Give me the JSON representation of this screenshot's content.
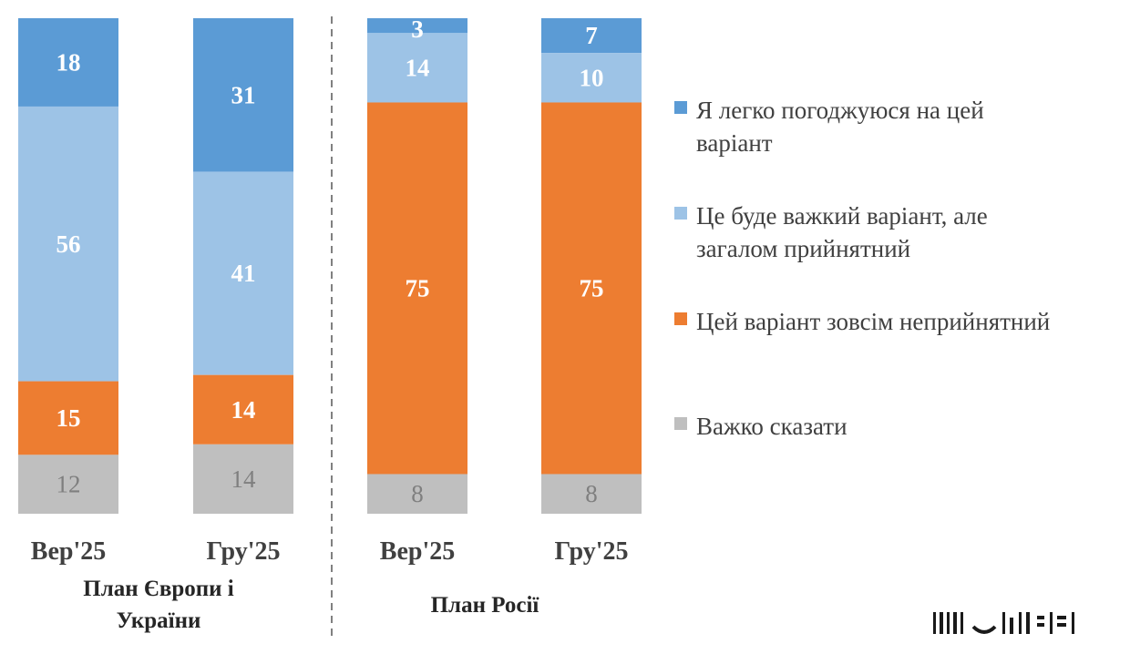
{
  "chart_data": {
    "type": "bar",
    "stacked": true,
    "normalized_percent": true,
    "groups": [
      {
        "label": "План Європи і України",
        "categories": [
          "Вер'25",
          "Гру'25"
        ]
      },
      {
        "label": "План Росії",
        "categories": [
          "Вер'25",
          "Гру'25"
        ]
      }
    ],
    "categories": [
      "Вер'25",
      "Гру'25",
      "Вер'25",
      "Гру'25"
    ],
    "series": [
      {
        "name": "Я легко погоджуюся на цей варіант",
        "color": "#5B9BD5",
        "values": [
          18,
          31,
          3,
          7
        ]
      },
      {
        "name": "Це буде важкий варіант, але загалом прийнятний",
        "color": "#9DC3E6",
        "values": [
          56,
          41,
          14,
          10
        ]
      },
      {
        "name": "Цей варіант зовсім неприйнятний",
        "color": "#ED7D31",
        "values": [
          15,
          14,
          75,
          75
        ]
      },
      {
        "name": "Важко сказати",
        "color": "#BFBFBF",
        "values": [
          12,
          14,
          8,
          8
        ]
      }
    ],
    "legend_position": "right",
    "grid": false,
    "group_separator": "dashed"
  },
  "legend": {
    "entries": [
      {
        "lines": [
          "Я легко погоджуюся на цей",
          "варіант"
        ]
      },
      {
        "lines": [
          "Це буде важкий варіант, але",
          "загалом прийнятний"
        ]
      },
      {
        "lines": [
          "Цей варіант зовсім неприйнятний"
        ]
      },
      {
        "lines": [
          "Важко сказати"
        ]
      }
    ]
  },
  "group_label_lines": [
    [
      "План Європи і",
      "України"
    ],
    [
      "План Росії"
    ]
  ],
  "watermark_icon": "barcode-watermark-icon"
}
